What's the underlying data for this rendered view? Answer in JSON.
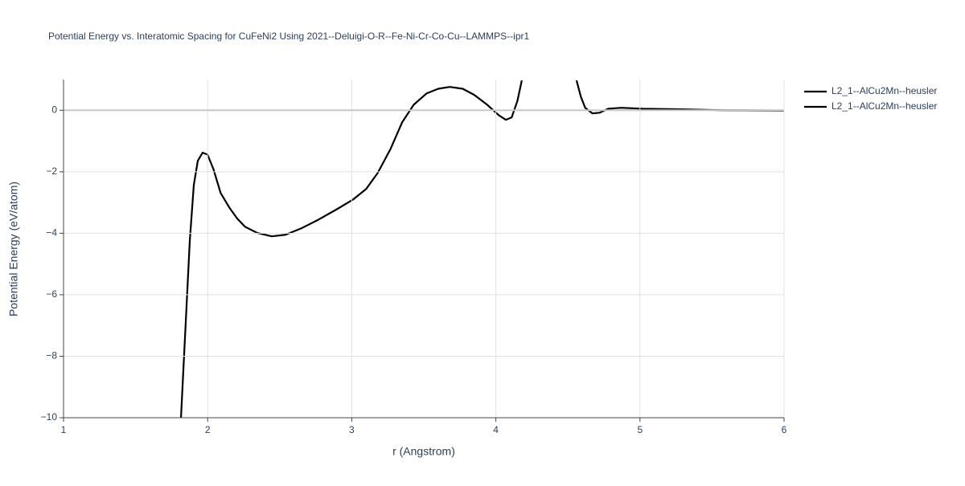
{
  "chart_data": {
    "type": "line",
    "title": "Potential Energy vs. Interatomic Spacing for CuFeNi2 Using 2021--Deluigi-O-R--Fe-Ni-Cr-Co-Cu--LAMMPS--ipr1",
    "x_label": "r (Angstrom)",
    "y_label": "Potential Energy (eV/atom)",
    "xlim": [
      1,
      6
    ],
    "ylim": [
      -10,
      1
    ],
    "xticks": [
      1,
      2,
      3,
      4,
      5,
      6
    ],
    "yticks": [
      {
        "value": -10,
        "label": "−10"
      },
      {
        "value": -8,
        "label": "−8"
      },
      {
        "value": -6,
        "label": "−6"
      },
      {
        "value": -4,
        "label": "−4"
      },
      {
        "value": -2,
        "label": "−2"
      },
      0
    ],
    "grid": true,
    "legend": "top-right",
    "series": [
      {
        "name": "L2_1--AlCu2Mn--heusler",
        "color": "#000000",
        "x": [
          1.815,
          1.854,
          1.876,
          1.904,
          1.932,
          1.965,
          1.999,
          2.04,
          2.09,
          2.15,
          2.205,
          2.26,
          2.345,
          2.445,
          2.54,
          2.65,
          2.76,
          2.9,
          3.01,
          3.1,
          3.18,
          3.27,
          3.35,
          3.43,
          3.52,
          3.6,
          3.68,
          3.77,
          3.85,
          3.94,
          4.02,
          4.07,
          4.11,
          4.15,
          4.18
        ],
        "values": [
          -10,
          -6.34,
          -4.26,
          -2.43,
          -1.64,
          -1.38,
          -1.44,
          -1.91,
          -2.69,
          -3.16,
          -3.52,
          -3.79,
          -3.99,
          -4.1,
          -4.05,
          -3.84,
          -3.58,
          -3.21,
          -2.9,
          -2.56,
          -2.04,
          -1.25,
          -0.39,
          0.18,
          0.55,
          0.7,
          0.76,
          0.7,
          0.5,
          0.18,
          -0.16,
          -0.31,
          -0.23,
          0.31,
          0.97
        ]
      },
      {
        "name": "L2_1--AlCu2Mn--heusler",
        "color": "#000000",
        "x": [
          4.56,
          4.59,
          4.62,
          4.67,
          4.72,
          4.78,
          4.87,
          5.02,
          5.3,
          5.58,
          6.0
        ],
        "values": [
          0.97,
          0.44,
          0.08,
          -0.1,
          -0.08,
          0.05,
          0.08,
          0.05,
          0.03,
          0.0,
          -0.01
        ]
      }
    ]
  }
}
